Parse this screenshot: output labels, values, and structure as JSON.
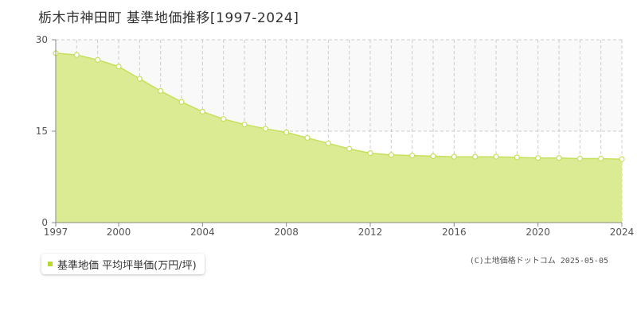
{
  "title": "栃木市神田町 基準地価推移[1997-2024]",
  "legend": {
    "label": "基準地価 平均坪単価(万円/坪)"
  },
  "copyright": "(C)土地価格ドットコム 2025-05-05",
  "colors": {
    "fill": "#dbeb94",
    "line": "#c5e05c",
    "marker_fill": "#ffffff",
    "grid": "#cccccc",
    "upper_band": "#f9f9f9",
    "axis": "#888888",
    "legend_swatch": "#b8d832"
  },
  "chart_data": {
    "type": "area",
    "title": "栃木市神田町 基準地価推移[1997-2024]",
    "xlabel": "",
    "ylabel": "",
    "xlim": [
      1997,
      2024
    ],
    "ylim": [
      0,
      30
    ],
    "x_ticks": [
      "1997",
      "2000",
      "2004",
      "2008",
      "2012",
      "2016",
      "2020",
      "2024"
    ],
    "y_ticks": [
      "0",
      "15",
      "30"
    ],
    "grid": true,
    "legend_position": "bottom-left",
    "series": [
      {
        "name": "基準地価 平均坪単価(万円/坪)",
        "x": [
          1997,
          1998,
          1999,
          2000,
          2001,
          2002,
          2003,
          2004,
          2005,
          2006,
          2007,
          2008,
          2009,
          2010,
          2011,
          2012,
          2013,
          2014,
          2015,
          2016,
          2017,
          2018,
          2019,
          2020,
          2021,
          2022,
          2023,
          2024
        ],
        "values": [
          27.8,
          27.5,
          26.7,
          25.6,
          23.6,
          21.6,
          19.8,
          18.2,
          17.0,
          16.1,
          15.4,
          14.8,
          13.9,
          13.0,
          12.1,
          11.4,
          11.1,
          11.0,
          10.9,
          10.8,
          10.8,
          10.8,
          10.7,
          10.6,
          10.6,
          10.5,
          10.5,
          10.4
        ]
      }
    ]
  }
}
